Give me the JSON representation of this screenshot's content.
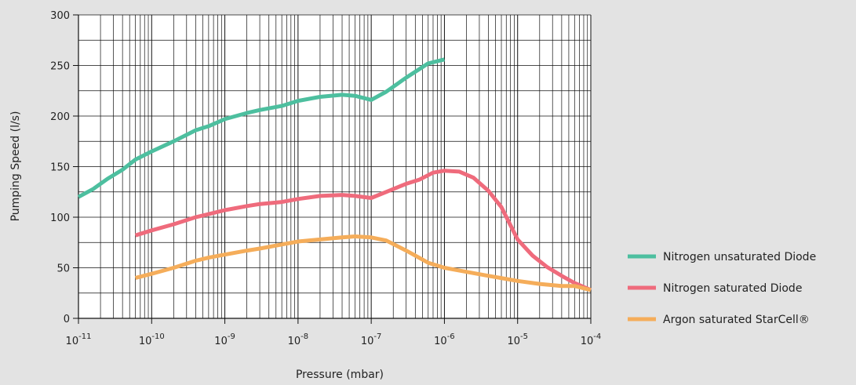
{
  "chart_data": {
    "type": "line",
    "xlabel": "Pressure (mbar)",
    "ylabel": "Pumping Speed (l/s)",
    "x_scale": "log",
    "xlim": [
      1e-11,
      0.0001
    ],
    "ylim": [
      0,
      300
    ],
    "grid": true,
    "legend_position": "right",
    "x_ticks": [
      {
        "base": "10",
        "exp": "-11",
        "value": 1e-11
      },
      {
        "base": "10",
        "exp": "-10",
        "value": 1e-10
      },
      {
        "base": "10",
        "exp": "-9",
        "value": 1e-09
      },
      {
        "base": "10",
        "exp": "-8",
        "value": 1e-08
      },
      {
        "base": "10",
        "exp": "-7",
        "value": 1e-07
      },
      {
        "base": "10",
        "exp": "-6",
        "value": 1e-06
      },
      {
        "base": "10",
        "exp": "-5",
        "value": 1e-05
      },
      {
        "base": "10",
        "exp": "-4",
        "value": 0.0001
      }
    ],
    "y_ticks": [
      "0",
      "50",
      "100",
      "150",
      "200",
      "250",
      "300"
    ],
    "series": [
      {
        "name": "Nitrogen unsaturated Diode",
        "color": "#4dbf9f",
        "points": [
          [
            1e-11,
            120
          ],
          [
            1.6e-11,
            128
          ],
          [
            2.5e-11,
            138
          ],
          [
            4e-11,
            147
          ],
          [
            6e-11,
            157
          ],
          [
            1e-10,
            165
          ],
          [
            2e-10,
            175
          ],
          [
            4e-10,
            186
          ],
          [
            6e-10,
            190
          ],
          [
            1e-09,
            197
          ],
          [
            2e-09,
            203
          ],
          [
            3e-09,
            206
          ],
          [
            6e-09,
            210
          ],
          [
            1e-08,
            215
          ],
          [
            2e-08,
            219
          ],
          [
            4e-08,
            221
          ],
          [
            6e-08,
            220
          ],
          [
            1e-07,
            216
          ],
          [
            1.6e-07,
            224
          ],
          [
            3e-07,
            238
          ],
          [
            6e-07,
            252
          ],
          [
            1e-06,
            256
          ]
        ]
      },
      {
        "name": "Nitrogen saturated Diode",
        "color": "#ef6b7c",
        "points": [
          [
            6e-11,
            82
          ],
          [
            1e-10,
            87
          ],
          [
            2e-10,
            93
          ],
          [
            4e-10,
            100
          ],
          [
            6e-10,
            103
          ],
          [
            1e-09,
            107
          ],
          [
            2e-09,
            111
          ],
          [
            3e-09,
            113
          ],
          [
            6e-09,
            115
          ],
          [
            1e-08,
            118
          ],
          [
            2e-08,
            121
          ],
          [
            4e-08,
            122
          ],
          [
            6e-08,
            121
          ],
          [
            1e-07,
            119
          ],
          [
            1.6e-07,
            125
          ],
          [
            3e-07,
            133
          ],
          [
            4.5e-07,
            137
          ],
          [
            7e-07,
            144
          ],
          [
            1e-06,
            146
          ],
          [
            1.6e-06,
            145
          ],
          [
            2.5e-06,
            139
          ],
          [
            4e-06,
            126
          ],
          [
            6e-06,
            110
          ],
          [
            1e-05,
            78
          ],
          [
            1.6e-05,
            62
          ],
          [
            2.5e-05,
            51
          ],
          [
            4e-05,
            42
          ],
          [
            6e-05,
            35
          ],
          [
            0.0001,
            28
          ]
        ]
      },
      {
        "name": "Argon saturated StarCell®",
        "color": "#f5ad5a",
        "points": [
          [
            6e-11,
            40
          ],
          [
            1e-10,
            44
          ],
          [
            2e-10,
            50
          ],
          [
            4e-10,
            57
          ],
          [
            6e-10,
            60
          ],
          [
            1e-09,
            63
          ],
          [
            2e-09,
            67
          ],
          [
            3e-09,
            69
          ],
          [
            6e-09,
            73
          ],
          [
            1e-08,
            76
          ],
          [
            2e-08,
            78
          ],
          [
            4e-08,
            80
          ],
          [
            6e-08,
            81
          ],
          [
            1e-07,
            80
          ],
          [
            1.6e-07,
            77
          ],
          [
            3e-07,
            67
          ],
          [
            6e-07,
            55
          ],
          [
            1e-06,
            50
          ],
          [
            2e-06,
            46
          ],
          [
            4e-06,
            42
          ],
          [
            1e-05,
            37
          ],
          [
            2e-05,
            34
          ],
          [
            4e-05,
            32
          ],
          [
            6e-05,
            32
          ],
          [
            0.0001,
            28
          ]
        ]
      }
    ]
  }
}
